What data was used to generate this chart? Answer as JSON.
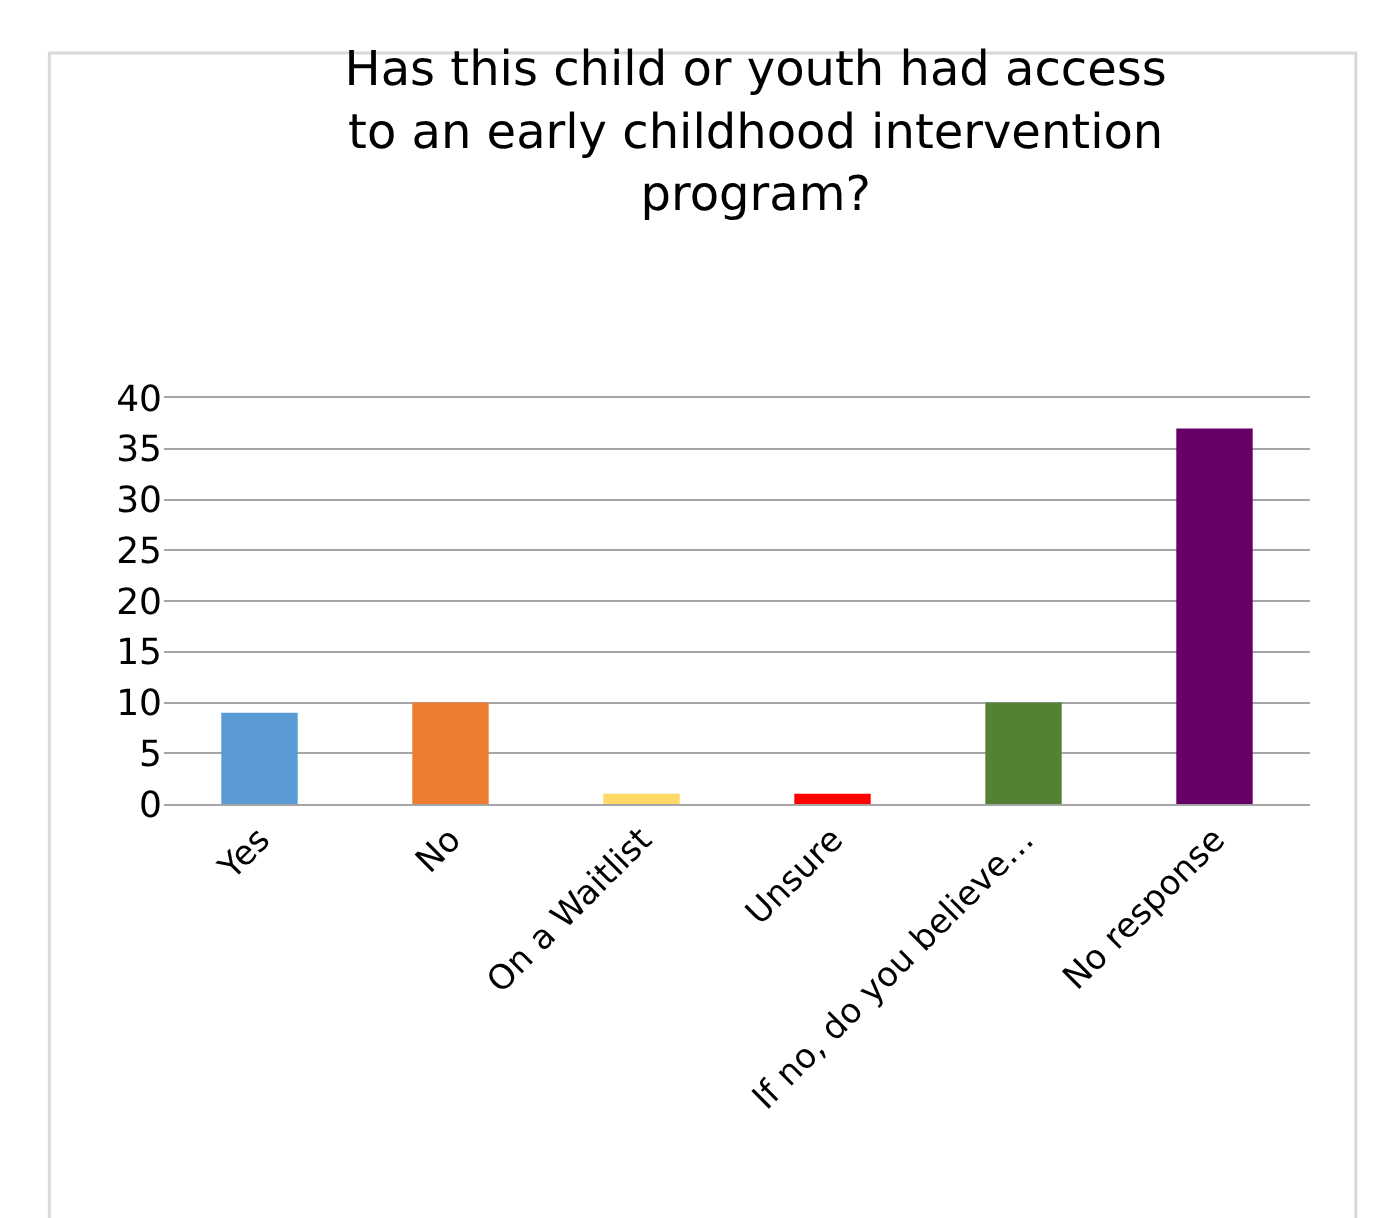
{
  "chart_data": {
    "type": "bar",
    "title": "Has this child or youth had access to an early childhood intervention program?",
    "categories": [
      "Yes",
      "No",
      "On a Waitlist",
      "Unsure",
      "If no, do you believe…",
      "No response"
    ],
    "values": [
      9,
      10,
      1,
      1,
      10,
      37
    ],
    "colors": [
      "#5b9bd5",
      "#ed7d31",
      "#ffd966",
      "#ff0000",
      "#548235",
      "#660066"
    ],
    "ylim": [
      0,
      40
    ],
    "yticks": [
      0,
      5,
      10,
      15,
      20,
      25,
      30,
      35,
      40
    ],
    "grid": "y"
  }
}
